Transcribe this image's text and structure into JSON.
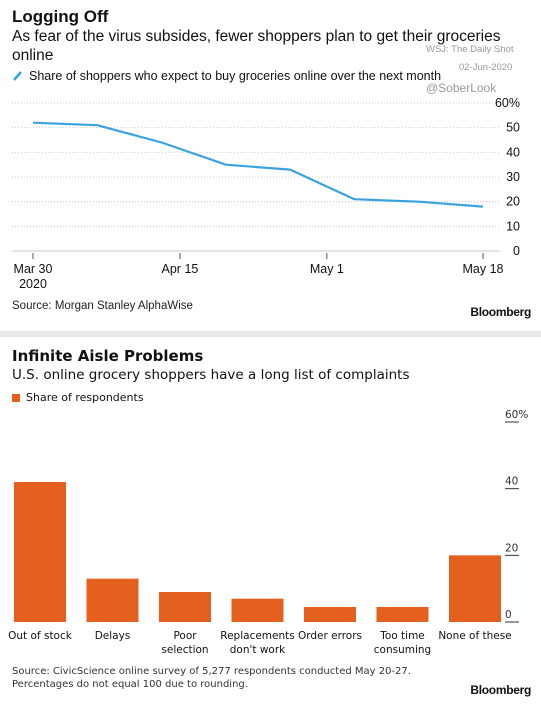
{
  "chart1": {
    "title": "Logging Off",
    "subtitle": "As fear of the virus subsides, fewer shoppers plan to get their groceries online",
    "legend_label": "Share of shoppers who expect to buy groceries online over the next month",
    "source": "Source: Morgan Stanley AlphaWise",
    "brand": "Bloomberg",
    "series_color": "#3aa3df"
  },
  "watermark": {
    "line1": "WSJ: The Daily Shot",
    "line2": "02-Jun-2020",
    "handle": "@SoberLook"
  },
  "chart2": {
    "title": "Infinite Aisle Problems",
    "subtitle": "U.S. online grocery shoppers have a long list of complaints",
    "legend_label": "Share of respondents",
    "source": "Source: CivicScience online survey of 5,277 respondents conducted May 20-27. Percentages do not equal 100 due to rounding.",
    "brand": "Bloomberg",
    "bar_color": "#e4601e"
  },
  "chart_data": [
    {
      "type": "line",
      "title": "Logging Off",
      "subtitle": "As fear of the virus subsides, fewer shoppers plan to get their groceries online",
      "series": [
        {
          "name": "Share of shoppers who expect to buy groceries online over the next month",
          "x": [
            "2020-03-30",
            "2020-04-06",
            "2020-04-13",
            "2020-04-20",
            "2020-04-27",
            "2020-05-04",
            "2020-05-11",
            "2020-05-18"
          ],
          "values": [
            52,
            51,
            44,
            35,
            33,
            21,
            20,
            18
          ]
        }
      ],
      "x_ticks": [
        {
          "date": "2020-03-30",
          "label": "Mar 30",
          "sublabel": "2020"
        },
        {
          "date": "2020-04-15",
          "label": "Apr 15",
          "sublabel": ""
        },
        {
          "date": "2020-05-01",
          "label": "May 1",
          "sublabel": ""
        },
        {
          "date": "2020-05-18",
          "label": "May 18",
          "sublabel": ""
        }
      ],
      "y_ticks": [
        0,
        10,
        20,
        30,
        40,
        50,
        60
      ],
      "y_tick_labels": [
        "0",
        "10",
        "20",
        "30",
        "40",
        "50",
        "60%"
      ],
      "ylim": [
        0,
        60
      ],
      "grid": true,
      "legend": "top-left"
    },
    {
      "type": "bar",
      "title": "Infinite Aisle Problems",
      "subtitle": "U.S. online grocery shoppers have a long list of complaints",
      "categories": [
        "Out of stock",
        "Delays",
        "Poor selection",
        "Replacements don't work",
        "Order errors",
        "Too time consuming",
        "None of these"
      ],
      "category_labels": [
        [
          "Out of stock"
        ],
        [
          "Delays"
        ],
        [
          "Poor",
          "selection"
        ],
        [
          "Replacements",
          "don't work"
        ],
        [
          "Order errors"
        ],
        [
          "Too time",
          "consuming"
        ],
        [
          "None of these"
        ]
      ],
      "series": [
        {
          "name": "Share of respondents",
          "values": [
            42,
            13,
            9,
            7,
            4.5,
            4.5,
            20
          ]
        }
      ],
      "y_ticks": [
        0,
        20,
        40,
        60
      ],
      "y_tick_labels": [
        "0",
        "20",
        "40",
        "60%"
      ],
      "ylim": [
        0,
        60
      ],
      "grid": false,
      "legend": "top-left"
    }
  ]
}
